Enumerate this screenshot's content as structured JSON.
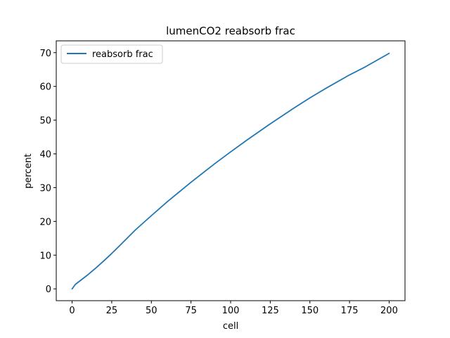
{
  "chart_data": {
    "type": "line",
    "title": "lumenCO2 reabsorb frac",
    "xlabel": "cell",
    "ylabel": "percent",
    "xlim": [
      -10,
      210
    ],
    "ylim": [
      -3.5,
      73.5
    ],
    "xticks": [
      0,
      25,
      50,
      75,
      100,
      125,
      150,
      175,
      200
    ],
    "yticks": [
      0,
      10,
      20,
      30,
      40,
      50,
      60,
      70
    ],
    "grid": false,
    "legend_position": "top-left",
    "series": [
      {
        "name": "reabsorb frac",
        "color": "#1f77b4",
        "x": [
          0,
          2,
          5,
          10,
          15,
          20,
          25,
          30,
          40,
          50,
          60,
          75,
          90,
          100,
          110,
          125,
          140,
          150,
          160,
          175,
          185,
          200
        ],
        "y": [
          0,
          1.3,
          2.4,
          4.2,
          6.2,
          8.3,
          10.5,
          12.8,
          17.5,
          21.7,
          25.8,
          31.6,
          37.1,
          40.6,
          44.0,
          48.9,
          53.6,
          56.6,
          59.4,
          63.4,
          65.8,
          69.8
        ]
      }
    ]
  }
}
